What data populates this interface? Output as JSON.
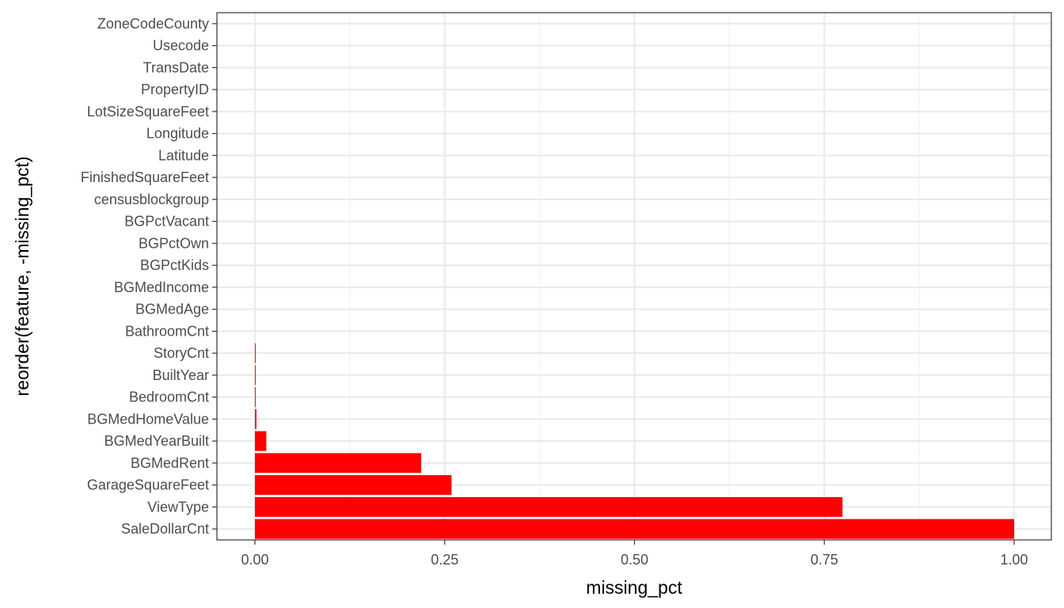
{
  "chart_data": {
    "type": "bar",
    "orientation": "horizontal",
    "xlabel": "missing_pct",
    "ylabel": "reorder(feature, -missing_pct)",
    "xlim": [
      -0.05,
      1.05
    ],
    "x_ticks": [
      0,
      0.25,
      0.5,
      0.75,
      1.0
    ],
    "x_tick_labels": [
      "0.00",
      "0.25",
      "0.50",
      "0.75",
      "1.00"
    ],
    "grid": true,
    "bar_color": "#ff0000",
    "categories": [
      "SaleDollarCnt",
      "ViewType",
      "GarageSquareFeet",
      "BGMedRent",
      "BGMedYearBuilt",
      "BGMedHomeValue",
      "BedroomCnt",
      "BuiltYear",
      "StoryCnt",
      "BathroomCnt",
      "BGMedAge",
      "BGMedIncome",
      "BGPctKids",
      "BGPctOwn",
      "BGPctVacant",
      "censusblockgroup",
      "FinishedSquareFeet",
      "Latitude",
      "Longitude",
      "LotSizeSquareFeet",
      "PropertyID",
      "TransDate",
      "Usecode",
      "ZoneCodeCounty"
    ],
    "values": [
      1.0,
      0.774,
      0.259,
      0.219,
      0.015,
      0.002,
      0.001,
      0.001,
      0.001,
      0,
      0,
      0,
      0,
      0,
      0,
      0,
      0,
      0,
      0,
      0,
      0,
      0,
      0,
      0
    ]
  }
}
